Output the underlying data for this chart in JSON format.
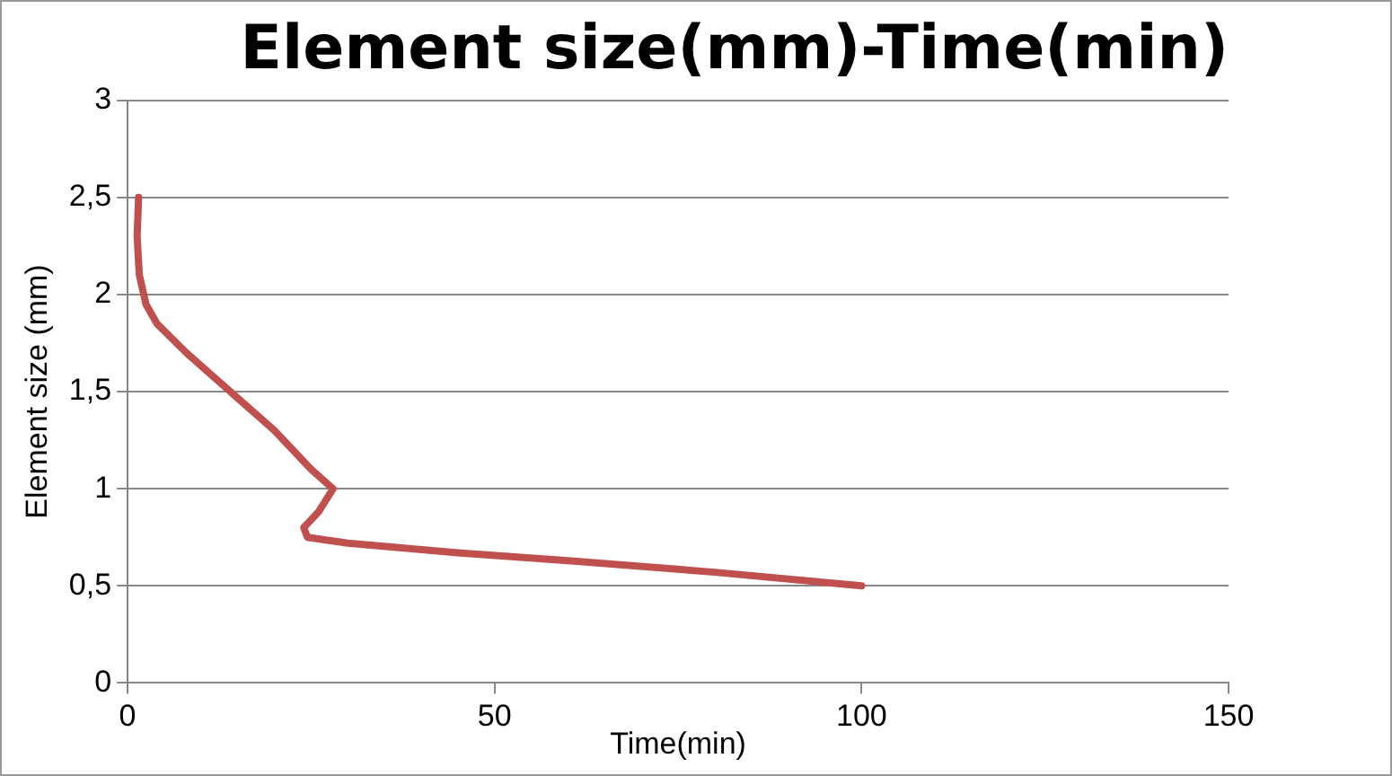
{
  "chart_data": {
    "type": "line",
    "title": "Element size(mm)-Time(min)",
    "xlabel": "Time(min)",
    "ylabel": "Element size (mm)",
    "xlim": [
      0,
      150
    ],
    "xticks": [
      0,
      50,
      100,
      150
    ],
    "ylim": [
      0,
      3
    ],
    "yticks": [
      0,
      {
        "value": 0.5,
        "label": "0,5"
      },
      1,
      {
        "value": 1.5,
        "label": "1,5"
      },
      2,
      {
        "value": 2.5,
        "label": "2,5"
      },
      3
    ],
    "grid": "y",
    "legend": false,
    "marker": "none",
    "line_style": "solid",
    "x": [
      1.5,
      1.3,
      1.6,
      2.5,
      4,
      8,
      14,
      20,
      25,
      28,
      26,
      24,
      24.5,
      30,
      45,
      60,
      80,
      100
    ],
    "series": [
      {
        "color": "#c0504d",
        "values": [
          2.5,
          2.3,
          2.1,
          1.95,
          1.85,
          1.7,
          1.5,
          1.3,
          1.1,
          1,
          0.88,
          0.8,
          0.75,
          0.72,
          0.67,
          0.63,
          0.57,
          0.5
        ]
      }
    ]
  }
}
